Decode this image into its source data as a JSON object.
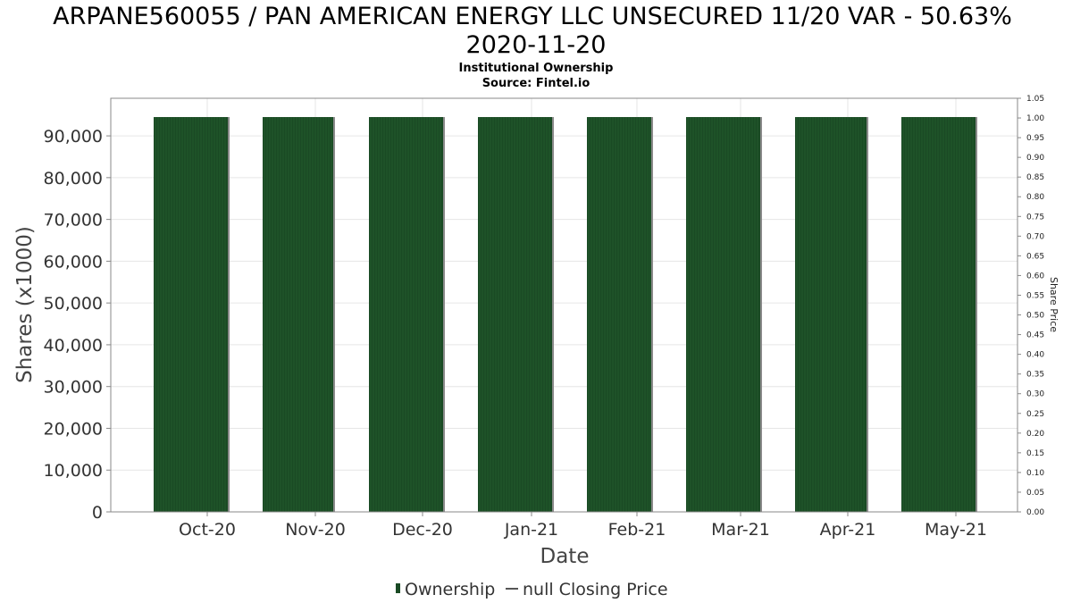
{
  "chart_data": {
    "type": "bar",
    "title": "ARPANE560055 / PAN AMERICAN ENERGY LLC UNSECURED 11/20 VAR - 50.63%",
    "title_line2": "2020-11-20",
    "subtitle": "Institutional Ownership",
    "source": "Source: Fintel.io",
    "xlabel": "Date",
    "ylabel": "Shares (x1000)",
    "y2label": "Share Price",
    "x_ticks": [
      "Oct-20",
      "Nov-20",
      "Dec-20",
      "Jan-21",
      "Feb-21",
      "Mar-21",
      "Apr-21",
      "May-21"
    ],
    "y_ticks": [
      "0",
      "10,000",
      "20,000",
      "30,000",
      "40,000",
      "50,000",
      "60,000",
      "70,000",
      "80,000",
      "90,000"
    ],
    "y2_ticks": [
      "0.00",
      "0.05",
      "0.10",
      "0.15",
      "0.20",
      "0.25",
      "0.30",
      "0.35",
      "0.40",
      "0.45",
      "0.50",
      "0.55",
      "0.60",
      "0.65",
      "0.70",
      "0.75",
      "0.80",
      "0.85",
      "0.90",
      "0.95",
      "1.00",
      "1.05"
    ],
    "ylim": [
      0,
      99000
    ],
    "y2lim": [
      0,
      1.05
    ],
    "grid": true,
    "legend_position": "bottom",
    "series": [
      {
        "name": "Ownership",
        "color": "#1a4a24",
        "bars": [
          {
            "x": "Oct-20",
            "value": 94500
          },
          {
            "x": "Nov-20",
            "value": 94500
          },
          {
            "x": "Dec-20",
            "value": 94500
          },
          {
            "x": "Jan-21",
            "value": 94500
          },
          {
            "x": "Feb-21",
            "value": 94500
          },
          {
            "x": "Mar-21",
            "value": 94500
          },
          {
            "x": "Apr-21",
            "value": 94500
          },
          {
            "x": "May-21",
            "value": 94500
          }
        ]
      },
      {
        "name": "null Closing Price",
        "color": "#555555",
        "values": []
      }
    ]
  }
}
